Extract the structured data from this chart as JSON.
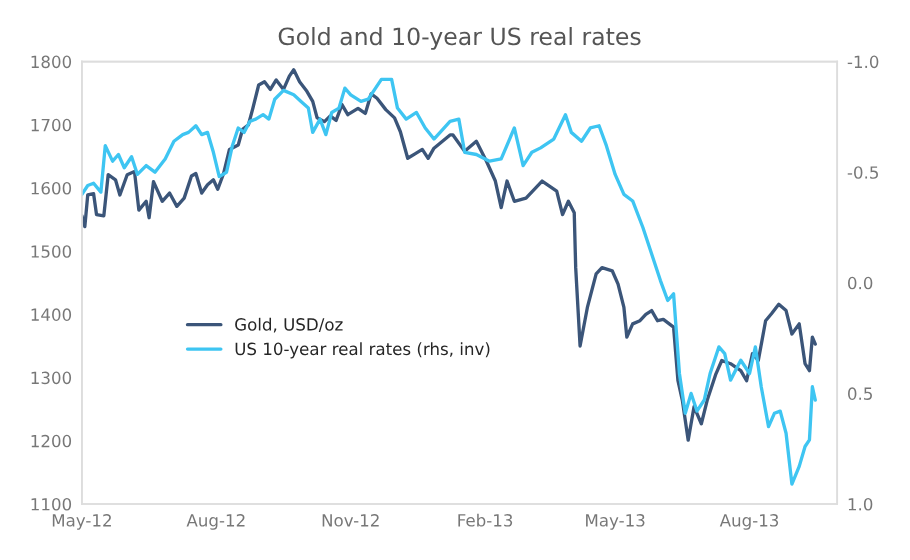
{
  "chart_data": {
    "type": "line",
    "title": "Gold and 10-year US real rates",
    "xlim": [
      "2012-05-01",
      "2013-09-30"
    ],
    "xticks": [
      {
        "value": "2012-05-01",
        "label": "May-12"
      },
      {
        "value": "2012-08-01",
        "label": "Aug-12"
      },
      {
        "value": "2012-11-01",
        "label": "Nov-12"
      },
      {
        "value": "2013-02-01",
        "label": "Feb-13"
      },
      {
        "value": "2013-05-01",
        "label": "May-13"
      },
      {
        "value": "2013-08-01",
        "label": "Aug-13"
      }
    ],
    "ylim": [
      1100,
      1800
    ],
    "yticks": [
      1100,
      1200,
      1300,
      1400,
      1500,
      1600,
      1700,
      1800
    ],
    "y2lim": [
      1.0,
      -1.0
    ],
    "y2ticks": [
      {
        "value": -1.0,
        "label": "-1.0"
      },
      {
        "value": -0.5,
        "label": "-0.5"
      },
      {
        "value": 0.0,
        "label": "0.0"
      },
      {
        "value": 0.5,
        "label": "0.5"
      },
      {
        "value": 1.0,
        "label": "1.0"
      }
    ],
    "grid": false,
    "legend": "center left",
    "series": [
      {
        "name": "Gold, USD/oz",
        "color": "#3b5579",
        "x": [
          "2012-05-01",
          "2012-05-03",
          "2012-05-05",
          "2012-05-09",
          "2012-05-11",
          "2012-05-16",
          "2012-05-19",
          "2012-05-24",
          "2012-05-27",
          "2012-06-01",
          "2012-06-06",
          "2012-06-09",
          "2012-06-14",
          "2012-06-16",
          "2012-06-19",
          "2012-06-25",
          "2012-06-30",
          "2012-07-05",
          "2012-07-10",
          "2012-07-15",
          "2012-07-18",
          "2012-07-22",
          "2012-07-26",
          "2012-07-30",
          "2012-08-02",
          "2012-08-06",
          "2012-08-10",
          "2012-08-16",
          "2012-08-19",
          "2012-08-23",
          "2012-08-26",
          "2012-08-30",
          "2012-09-03",
          "2012-09-07",
          "2012-09-11",
          "2012-09-16",
          "2012-09-20",
          "2012-09-23",
          "2012-09-27",
          "2012-10-02",
          "2012-10-06",
          "2012-10-09",
          "2012-10-14",
          "2012-10-18",
          "2012-10-22",
          "2012-10-26",
          "2012-10-30",
          "2012-11-06",
          "2012-11-11",
          "2012-11-15",
          "2012-11-19",
          "2012-11-25",
          "2012-12-01",
          "2012-12-05",
          "2012-12-10",
          "2012-12-15",
          "2012-12-20",
          "2012-12-24",
          "2012-12-28",
          "2013-01-08",
          "2013-01-10",
          "2013-01-18",
          "2013-01-26",
          "2013-02-02",
          "2013-02-08",
          "2013-02-12",
          "2013-02-16",
          "2013-02-21",
          "2013-03-01",
          "2013-03-12",
          "2013-03-22",
          "2013-03-26",
          "2013-03-30",
          "2013-04-03",
          "2013-04-04",
          "2013-04-07",
          "2013-04-12",
          "2013-04-18",
          "2013-04-22",
          "2013-04-29",
          "2013-05-03",
          "2013-05-07",
          "2013-05-09",
          "2013-05-13",
          "2013-05-18",
          "2013-05-22",
          "2013-05-26",
          "2013-05-30",
          "2013-06-03",
          "2013-06-10",
          "2013-06-13",
          "2013-06-16",
          "2013-06-20",
          "2013-06-24",
          "2013-06-29",
          "2013-07-03",
          "2013-07-09",
          "2013-07-13",
          "2013-07-19",
          "2013-07-26",
          "2013-07-30",
          "2013-08-03",
          "2013-08-07",
          "2013-08-12",
          "2013-08-16",
          "2013-08-21",
          "2013-08-26",
          "2013-08-30",
          "2013-09-04",
          "2013-09-08",
          "2013-09-11",
          "2013-09-13",
          "2013-09-15"
        ],
        "values": [
          1556,
          1539,
          1589,
          1591,
          1558,
          1556,
          1621,
          1613,
          1589,
          1621,
          1626,
          1565,
          1579,
          1553,
          1610,
          1579,
          1592,
          1571,
          1584,
          1619,
          1623,
          1592,
          1605,
          1613,
          1598,
          1623,
          1661,
          1668,
          1693,
          1700,
          1726,
          1763,
          1768,
          1756,
          1771,
          1756,
          1777,
          1787,
          1768,
          1753,
          1737,
          1711,
          1705,
          1714,
          1707,
          1732,
          1716,
          1726,
          1718,
          1749,
          1742,
          1724,
          1711,
          1689,
          1647,
          1654,
          1661,
          1647,
          1663,
          1684,
          1684,
          1658,
          1674,
          1642,
          1611,
          1569,
          1611,
          1579,
          1584,
          1611,
          1595,
          1558,
          1579,
          1561,
          1474,
          1350,
          1411,
          1464,
          1474,
          1469,
          1448,
          1411,
          1364,
          1385,
          1390,
          1400,
          1406,
          1390,
          1392,
          1380,
          1295,
          1264,
          1201,
          1254,
          1227,
          1264,
          1306,
          1327,
          1322,
          1311,
          1295,
          1338,
          1327,
          1390,
          1401,
          1416,
          1406,
          1369,
          1385,
          1322,
          1311,
          1364,
          1353
        ]
      },
      {
        "name": "US 10-year real rates (rhs, inv)",
        "color": "#3ec5f2",
        "axis": "y2",
        "x": [
          "2012-05-01",
          "2012-05-05",
          "2012-05-09",
          "2012-05-14",
          "2012-05-17",
          "2012-05-22",
          "2012-05-26",
          "2012-05-30",
          "2012-06-04",
          "2012-06-08",
          "2012-06-14",
          "2012-06-20",
          "2012-06-27",
          "2012-07-03",
          "2012-07-09",
          "2012-07-13",
          "2012-07-18",
          "2012-07-22",
          "2012-07-26",
          "2012-07-30",
          "2012-08-03",
          "2012-08-08",
          "2012-08-12",
          "2012-08-16",
          "2012-08-20",
          "2012-08-24",
          "2012-08-28",
          "2012-09-02",
          "2012-09-06",
          "2012-09-10",
          "2012-09-16",
          "2012-09-23",
          "2012-09-28",
          "2012-10-03",
          "2012-10-06",
          "2012-10-11",
          "2012-10-15",
          "2012-10-19",
          "2012-10-24",
          "2012-10-28",
          "2012-11-01",
          "2012-11-08",
          "2012-11-13",
          "2012-11-18",
          "2012-11-22",
          "2012-11-29",
          "2012-12-03",
          "2012-12-09",
          "2012-12-16",
          "2012-12-22",
          "2012-12-28",
          "2013-01-08",
          "2013-01-14",
          "2013-01-18",
          "2013-01-26",
          "2013-02-04",
          "2013-02-12",
          "2013-02-21",
          "2013-02-27",
          "2013-03-05",
          "2013-03-11",
          "2013-03-20",
          "2013-03-28",
          "2013-04-01",
          "2013-04-08",
          "2013-04-14",
          "2013-04-20",
          "2013-04-25",
          "2013-05-01",
          "2013-05-07",
          "2013-05-13",
          "2013-05-20",
          "2013-05-26",
          "2013-06-01",
          "2013-06-06",
          "2013-06-10",
          "2013-06-14",
          "2013-06-18",
          "2013-06-22",
          "2013-06-26",
          "2013-07-01",
          "2013-07-05",
          "2013-07-11",
          "2013-07-15",
          "2013-07-19",
          "2013-07-26",
          "2013-08-01",
          "2013-08-05",
          "2013-08-09",
          "2013-08-14",
          "2013-08-18",
          "2013-08-22",
          "2013-08-26",
          "2013-08-30",
          "2013-09-04",
          "2013-09-08",
          "2013-09-11",
          "2013-09-13",
          "2013-09-15"
        ],
        "values": [
          -0.4,
          -0.44,
          -0.45,
          -0.41,
          -0.62,
          -0.55,
          -0.58,
          -0.52,
          -0.57,
          -0.49,
          -0.53,
          -0.5,
          -0.56,
          -0.64,
          -0.67,
          -0.68,
          -0.71,
          -0.67,
          -0.68,
          -0.59,
          -0.48,
          -0.5,
          -0.62,
          -0.7,
          -0.68,
          -0.73,
          -0.74,
          -0.76,
          -0.74,
          -0.83,
          -0.87,
          -0.85,
          -0.82,
          -0.79,
          -0.68,
          -0.74,
          -0.67,
          -0.77,
          -0.79,
          -0.88,
          -0.85,
          -0.82,
          -0.83,
          -0.88,
          -0.92,
          -0.92,
          -0.79,
          -0.74,
          -0.77,
          -0.7,
          -0.65,
          -0.73,
          -0.74,
          -0.59,
          -0.58,
          -0.55,
          -0.56,
          -0.7,
          -0.53,
          -0.59,
          -0.61,
          -0.65,
          -0.76,
          -0.68,
          -0.64,
          -0.7,
          -0.71,
          -0.62,
          -0.49,
          -0.4,
          -0.37,
          -0.25,
          -0.13,
          -0.01,
          0.08,
          0.05,
          0.41,
          0.59,
          0.5,
          0.58,
          0.53,
          0.41,
          0.29,
          0.32,
          0.44,
          0.35,
          0.41,
          0.29,
          0.47,
          0.65,
          0.59,
          0.58,
          0.68,
          0.91,
          0.83,
          0.74,
          0.71,
          0.47,
          0.53
        ]
      }
    ]
  }
}
